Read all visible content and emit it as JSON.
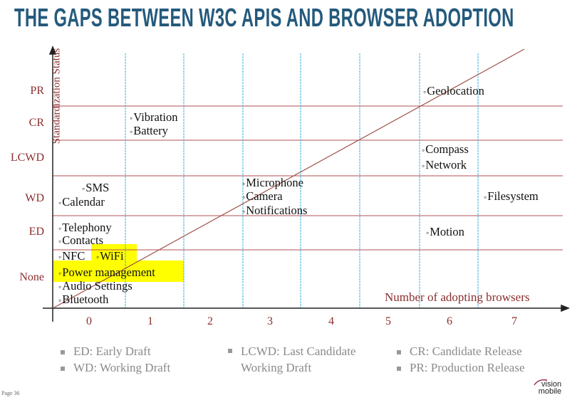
{
  "title": "THE GAPS BETWEEN W3C APIS AND BROWSER ADOPTION",
  "chart_data": {
    "type": "scatter",
    "ylabel": "Standardization Status",
    "xlabel": "Number of adopting browsers",
    "y_categories": [
      "None",
      "ED",
      "WD",
      "LCWD",
      "CR",
      "PR"
    ],
    "x_ticks": [
      "0",
      "1",
      "2",
      "3",
      "4",
      "5",
      "6",
      "7"
    ],
    "grid": true,
    "trend_line": "diagonal from lower-left to upper-right",
    "points": [
      {
        "label": "Vibration",
        "x": 1,
        "y": "CR"
      },
      {
        "label": "Battery",
        "x": 1,
        "y": "CR"
      },
      {
        "label": "SMS",
        "x": 0,
        "y": "WD"
      },
      {
        "label": "Calendar",
        "x": 0,
        "y": "WD"
      },
      {
        "label": "Microphone",
        "x": 3,
        "y": "WD"
      },
      {
        "label": "Camera",
        "x": 3,
        "y": "WD"
      },
      {
        "label": "Notifications",
        "x": 3,
        "y": "WD"
      },
      {
        "label": "Telephony",
        "x": 0,
        "y": "ED"
      },
      {
        "label": "Contacts",
        "x": 0,
        "y": "ED"
      },
      {
        "label": "NFC",
        "x": 0,
        "y": "None"
      },
      {
        "label": "WiFi",
        "x": 0,
        "y": "None",
        "highlighted": true
      },
      {
        "label": "Power management",
        "x": 0,
        "y": "None",
        "highlighted": true
      },
      {
        "label": "Audio Settings",
        "x": 0,
        "y": "None"
      },
      {
        "label": "Bluetooth",
        "x": 0,
        "y": "None"
      },
      {
        "label": "Geolocation",
        "x": 6,
        "y": "PR"
      },
      {
        "label": "Compass",
        "x": 6,
        "y": "LCWD"
      },
      {
        "label": "Network",
        "x": 6,
        "y": "LCWD"
      },
      {
        "label": "Filesystem",
        "x": 7,
        "y": "WD"
      },
      {
        "label": "Motion",
        "x": 6,
        "y": "ED"
      }
    ],
    "colors": {
      "highlight": "#ffff00",
      "axis_text": "#8b2e2e",
      "gridline_h": "#b05050",
      "gridline_v": "#3ab0e0",
      "title": "#245a7c"
    }
  },
  "legend": [
    [
      "ED: Early Draft",
      "WD: Working Draft"
    ],
    [
      "LCWD: Last Candidate Working Draft"
    ],
    [
      "CR: Candidate Release",
      "PR: Production Release"
    ]
  ],
  "footer": {
    "page": "Page 36",
    "logo": "vision mobile"
  }
}
